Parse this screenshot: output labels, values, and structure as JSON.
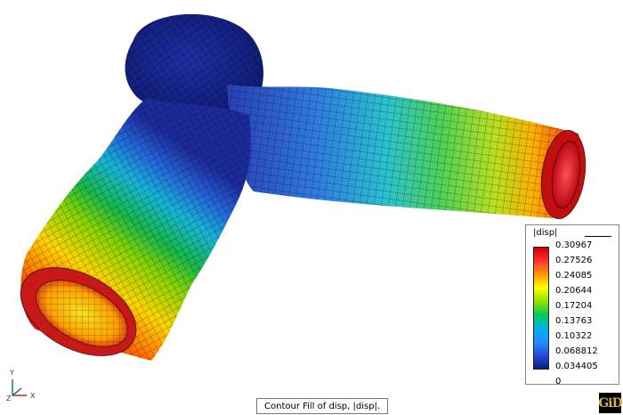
{
  "window": {
    "status_text": "Contour Fill of disp, |disp|."
  },
  "legend": {
    "title": "|disp|",
    "values": [
      "0.30967",
      "0.27526",
      "0.24085",
      "0.20644",
      "0.17204",
      "0.13763",
      "0.10322",
      "0.068812",
      "0.034405",
      "0"
    ],
    "colors": [
      "#cc0000",
      "#f33",
      "#ff9900",
      "#ffff00",
      "#90e000",
      "#00cc55",
      "#00b3e6",
      "#1e90ff",
      "#2a4bd7",
      "#001f80"
    ]
  },
  "axes": {
    "x_label": "X",
    "y_label": "Y",
    "z_label": "Z"
  },
  "brand": {
    "logo_text": "GiD"
  },
  "colors": {
    "low": "#1a237e",
    "mid_low": "#2196f3",
    "mid": "#4caf50",
    "mid_high": "#ffeb3b",
    "high": "#e53935"
  }
}
